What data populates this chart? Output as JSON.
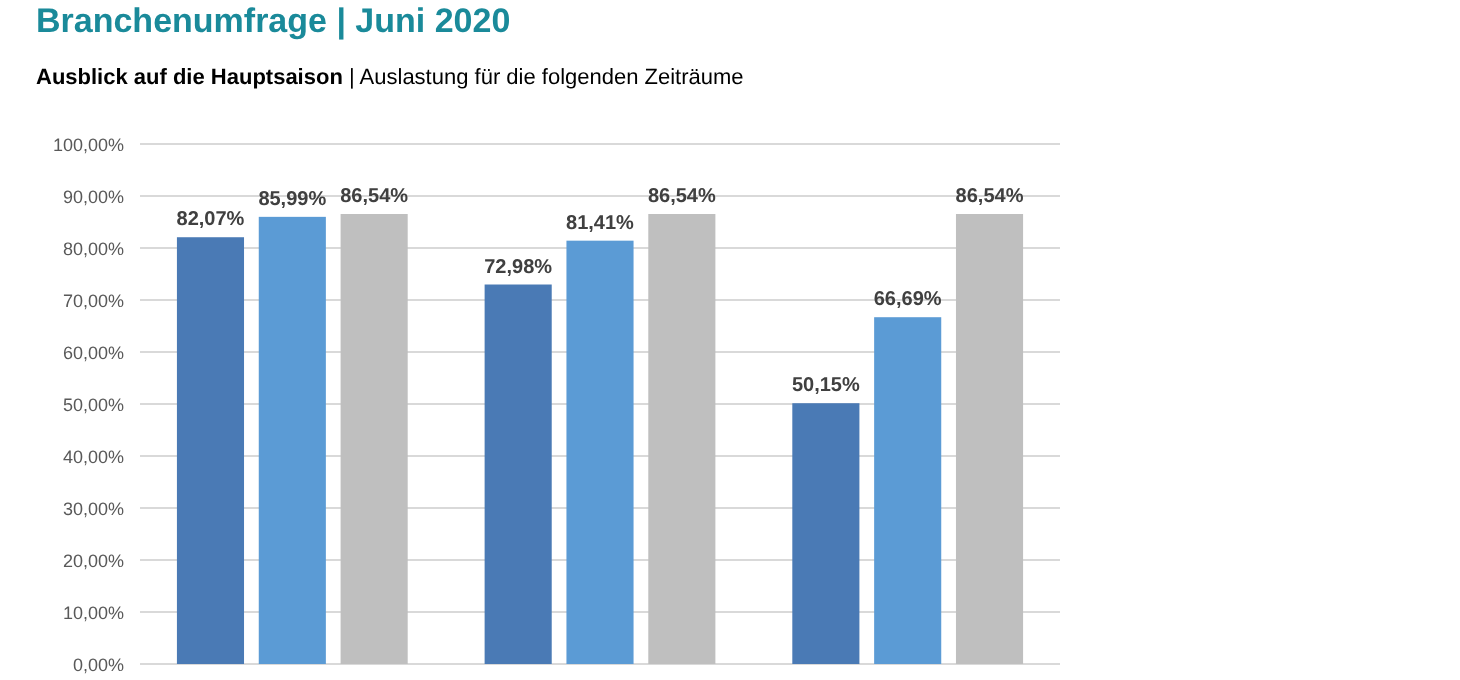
{
  "chart_data": {
    "type": "bar",
    "title": "Branchenumfrage | Juni 2020",
    "subtitle": "Ausblick auf die Hauptsaison | Auslastung für die folgenden Zeiträume",
    "categories": [
      null,
      null,
      null
    ],
    "series": [
      {
        "color": "#4a7ab5",
        "values": [
          82.07,
          72.98,
          50.15
        ],
        "value_labels": [
          "82,07%",
          "72,98%",
          "50,15%"
        ]
      },
      {
        "color": "#5b9bd5",
        "values": [
          85.99,
          81.41,
          66.69
        ],
        "value_labels": [
          "85,99%",
          "81,41%",
          "66,69%"
        ]
      },
      {
        "color": "#bfbfbf",
        "values": [
          86.54,
          86.54,
          86.54
        ],
        "value_labels": [
          "86,54%",
          "86,54%",
          "86,54%"
        ]
      }
    ],
    "ylim": [
      0,
      100
    ],
    "yticks": [
      {
        "value": 0,
        "label": "0,00%"
      },
      {
        "value": 10,
        "label": "10,00%"
      },
      {
        "value": 20,
        "label": "20,00%"
      },
      {
        "value": 30,
        "label": "30,00%"
      },
      {
        "value": 40,
        "label": "40,00%"
      },
      {
        "value": 50,
        "label": "50,00%"
      },
      {
        "value": 60,
        "label": "60,00%"
      },
      {
        "value": 70,
        "label": "70,00%"
      },
      {
        "value": 80,
        "label": "80,00%"
      },
      {
        "value": 90,
        "label": "90,00%"
      },
      {
        "value": 100,
        "label": "100,00%"
      }
    ],
    "grid": true
  }
}
